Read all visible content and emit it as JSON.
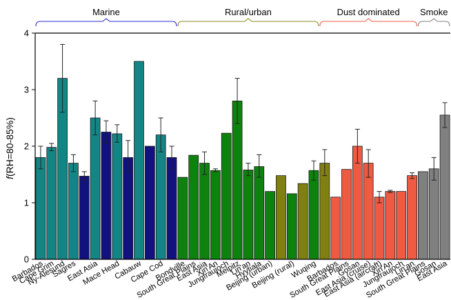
{
  "chart_data": {
    "type": "bar",
    "ylabel_prefix": "f",
    "ylabel_rest": "(RH=80-85%)",
    "ylim": [
      0,
      4
    ],
    "yticks": [
      "0",
      "1",
      "2",
      "3",
      "4"
    ],
    "grid": false,
    "colors": {
      "teal": "#138585",
      "navy": "#111180",
      "green": "#0e820e",
      "olive": "#808012",
      "red": "#ee5a42",
      "gray": "#808080"
    },
    "groups": [
      {
        "label": "Marine",
        "color": "#2a2ad0",
        "first": 0,
        "last": 12
      },
      {
        "label": "Rural/urban",
        "color": "#8a8a20",
        "first": 13,
        "last": 25
      },
      {
        "label": "Dust dominated",
        "color": "#ee5a42",
        "first": 26,
        "last": 34
      },
      {
        "label": "Smoke",
        "color": "#808080",
        "first": 35,
        "last": 38
      }
    ],
    "categories": [
      "Barbados",
      "Cape Grim",
      "Ny-Alesund",
      "Sagres",
      "East Asia",
      "Mace Head",
      "Cabauw",
      "Cape Cod",
      "Bondville",
      "South Great Plains",
      "East Asia",
      "Xin'An",
      "Jungfraujoch",
      "Melpitz",
      "Lin'an",
      "Hyytiala",
      "Beijing (urban)",
      "Beijing (rural)",
      "Wuqing",
      "Barbados",
      "South Great Plains",
      "Gosan",
      "East Asia (cruise)",
      "East Asia (aircraft)",
      "Xin'An",
      "Jungfraujoch",
      "Lin'an",
      "South Great Plains",
      "Gosan",
      "East Asia"
    ],
    "bars": [
      {
        "value": 1.8,
        "err": [
          1.6,
          2.0
        ],
        "color": "teal",
        "cat": 0
      },
      {
        "value": 1.98,
        "err": [
          1.92,
          2.05
        ],
        "color": "teal",
        "cat": 1
      },
      {
        "value": 3.2,
        "err": [
          2.6,
          3.8
        ],
        "color": "teal",
        "cat": 2
      },
      {
        "value": 1.7,
        "err": [
          1.55,
          1.85
        ],
        "color": "teal",
        "cat": 3
      },
      {
        "value": 1.47,
        "err": [
          1.4,
          1.55
        ],
        "color": "navy",
        "cat": null
      },
      {
        "value": 2.5,
        "err": [
          2.2,
          2.8
        ],
        "color": "teal",
        "cat": 4
      },
      {
        "value": 2.25,
        "err": [
          2.05,
          2.45
        ],
        "color": "navy",
        "cat": null
      },
      {
        "value": 2.22,
        "err": [
          2.07,
          2.38
        ],
        "color": "teal",
        "cat": 5
      },
      {
        "value": 1.8,
        "err": [
          1.55,
          2.1
        ],
        "color": "navy",
        "cat": null
      },
      {
        "value": 3.5,
        "err": null,
        "color": "teal",
        "cat": 6
      },
      {
        "value": 2.0,
        "err": null,
        "color": "navy",
        "cat": null
      },
      {
        "value": 2.2,
        "err": [
          1.9,
          2.5
        ],
        "color": "teal",
        "cat": 7
      },
      {
        "value": 1.8,
        "err": [
          1.6,
          2.0
        ],
        "color": "navy",
        "cat": null
      },
      {
        "value": 1.45,
        "err": null,
        "color": "green",
        "cat": 8
      },
      {
        "value": 1.84,
        "err": null,
        "color": "green",
        "cat": 9
      },
      {
        "value": 1.7,
        "err": [
          1.5,
          1.9
        ],
        "color": "green",
        "cat": 10
      },
      {
        "value": 1.57,
        "err": [
          1.55,
          1.6
        ],
        "color": "green",
        "cat": 11
      },
      {
        "value": 2.23,
        "err": null,
        "color": "green",
        "cat": 12
      },
      {
        "value": 2.8,
        "err": [
          2.4,
          3.2
        ],
        "color": "green",
        "cat": 13
      },
      {
        "value": 1.58,
        "err": [
          1.48,
          1.7
        ],
        "color": "green",
        "cat": 14
      },
      {
        "value": 1.64,
        "err": [
          1.45,
          1.85
        ],
        "color": "green",
        "cat": 15
      },
      {
        "value": 1.2,
        "err": null,
        "color": "green",
        "cat": 16
      },
      {
        "value": 1.48,
        "err": null,
        "color": "olive",
        "cat": null
      },
      {
        "value": 1.16,
        "err": null,
        "color": "green",
        "cat": 17
      },
      {
        "value": 1.34,
        "err": null,
        "color": "olive",
        "cat": null
      },
      {
        "value": 1.57,
        "err": [
          1.4,
          1.74
        ],
        "color": "green",
        "cat": 18
      },
      {
        "value": 1.7,
        "err": [
          1.48,
          1.94
        ],
        "color": "olive",
        "cat": null
      },
      {
        "value": 1.1,
        "err": null,
        "color": "red",
        "cat": 19
      },
      {
        "value": 1.59,
        "err": null,
        "color": "red",
        "cat": 20
      },
      {
        "value": 2.0,
        "err": [
          1.7,
          2.3
        ],
        "color": "red",
        "cat": 21
      },
      {
        "value": 1.7,
        "err": [
          1.45,
          1.94
        ],
        "color": "red",
        "cat": 22
      },
      {
        "value": 1.1,
        "err": [
          1.0,
          1.2
        ],
        "color": "red",
        "cat": 23
      },
      {
        "value": 1.2,
        "err": [
          1.18,
          1.22
        ],
        "color": "red",
        "cat": 24
      },
      {
        "value": 1.2,
        "err": null,
        "color": "red",
        "cat": 25
      },
      {
        "value": 1.48,
        "err": [
          1.43,
          1.53
        ],
        "color": "red",
        "cat": 26
      },
      {
        "value": 1.55,
        "err": null,
        "color": "gray",
        "cat": 27
      },
      {
        "value": 1.6,
        "err": [
          1.4,
          1.8
        ],
        "color": "gray",
        "cat": 28
      },
      {
        "value": 2.55,
        "err": [
          2.33,
          2.77
        ],
        "color": "gray",
        "cat": 29
      }
    ]
  }
}
